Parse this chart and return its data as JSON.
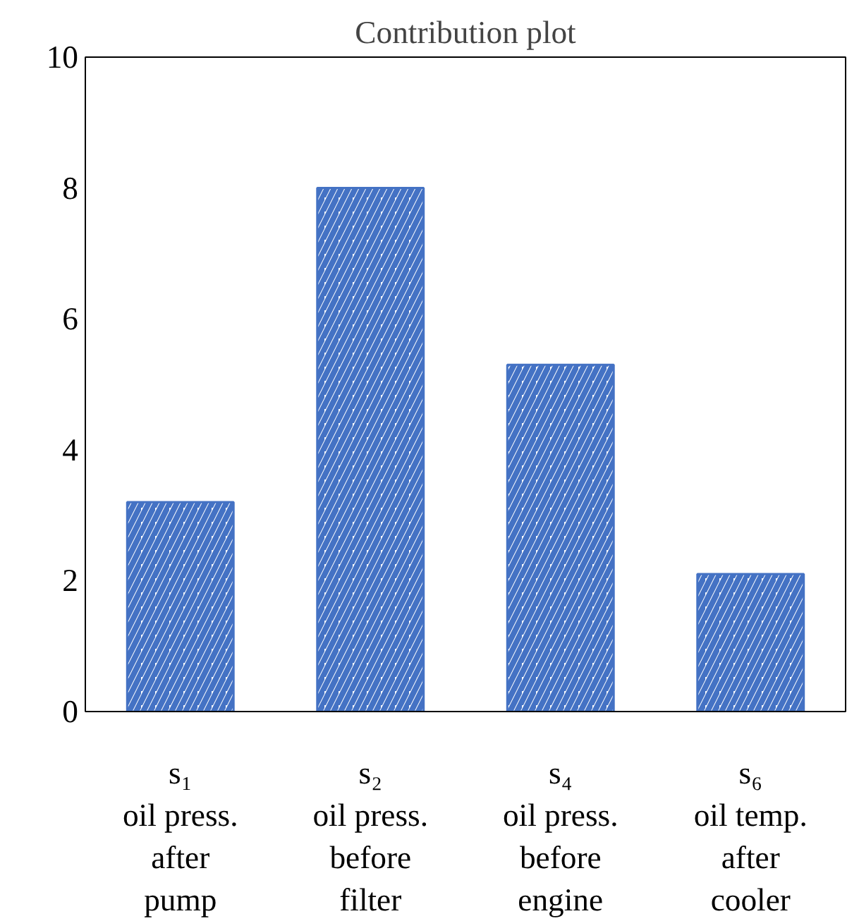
{
  "chart_data": {
    "type": "bar",
    "title": "Contribution plot",
    "categories": [
      "s₁\noil press.\nafter\npump",
      "s₂\noil press.\nbefore\nfilter",
      "s₄\noil press.\nbefore\nengine",
      "s₆\noil temp.\nafter\ncooler"
    ],
    "values": [
      3.2,
      8.0,
      5.3,
      2.1
    ],
    "color": "#4472c4",
    "ylim": [
      0,
      10
    ],
    "yticks": [
      0,
      2,
      4,
      6,
      8,
      10
    ],
    "grid": false
  }
}
